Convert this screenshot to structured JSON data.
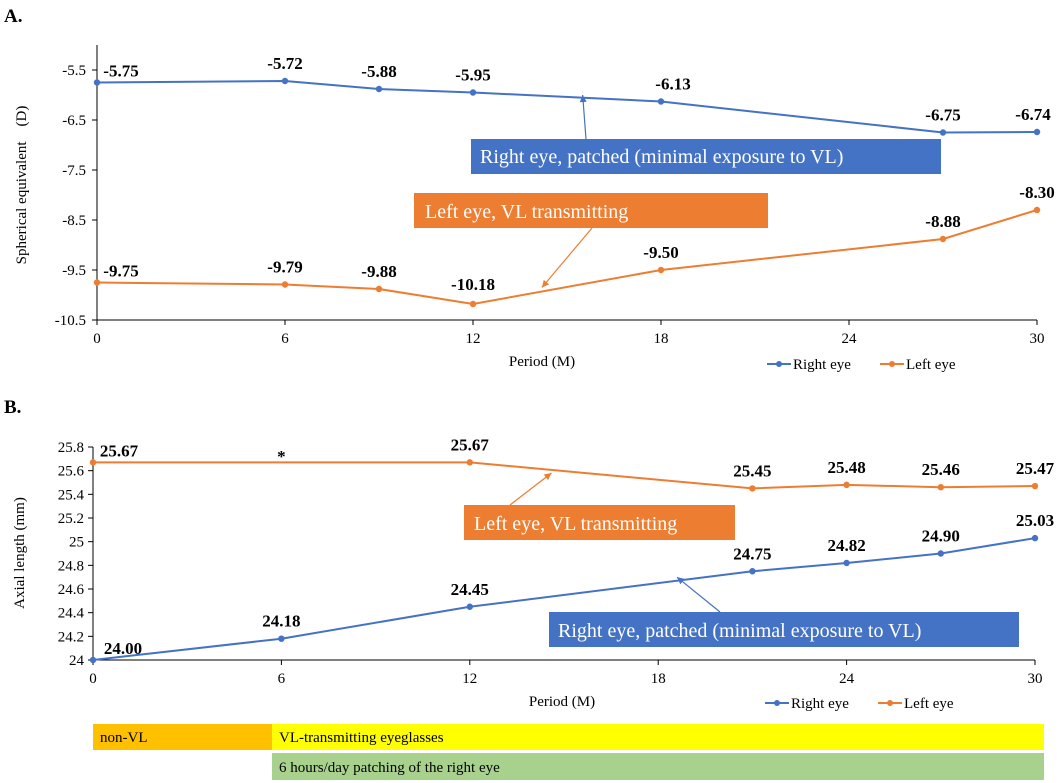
{
  "colors": {
    "right_eye": "#4472C4",
    "left_eye": "#ED7D31",
    "callout_blue": "#4472C4",
    "callout_orange": "#ED7D31",
    "bar_nonvl": "#FFC000",
    "bar_eyeglasses": "#FFFF00",
    "bar_patching": "#A9D18E"
  },
  "chart_data": [
    {
      "panel_label": "A.",
      "type": "line",
      "xlabel": "Period (M)",
      "ylabel": "Spherical equivalent    (D)",
      "xlim": [
        0,
        30
      ],
      "ylim": [
        -10.5,
        -5.0
      ],
      "xticks": [
        0,
        6,
        12,
        18,
        24,
        30
      ],
      "yticks": [
        -5.5,
        -6.5,
        -7.5,
        -8.5,
        -9.5,
        -10.5
      ],
      "ytick_labels": [
        "-5.5",
        "-6.5",
        "-7.5",
        "-8.5",
        "-9.5",
        "-10.5"
      ],
      "grid": false,
      "legend": "bottom-right",
      "series": [
        {
          "name": "Right eye",
          "x": [
            0,
            6,
            9,
            12,
            18,
            27,
            30
          ],
          "values": [
            -5.75,
            -5.72,
            -5.88,
            -5.95,
            -6.13,
            -6.75,
            -6.74
          ],
          "labels": [
            "-5.75",
            "-5.72",
            "-5.88",
            "-5.95",
            "-6.13",
            "-6.75",
            "-6.74"
          ]
        },
        {
          "name": "Left eye",
          "x": [
            0,
            6,
            9,
            12,
            18,
            27,
            30
          ],
          "values": [
            -9.75,
            -9.79,
            -9.88,
            -10.18,
            -9.5,
            -8.88,
            -8.3
          ],
          "labels": [
            "-9.75",
            "-9.79",
            "-9.88",
            "-10.18",
            "-9.50",
            "-8.88",
            "-8.30"
          ]
        }
      ],
      "annotations": [
        {
          "text": "Right eye, patched (minimal exposure to VL)",
          "series": "Right eye",
          "arrow_to": [
            15.5,
            -6.0
          ]
        },
        {
          "text": "Left eye, VL transmitting",
          "series": "Left eye",
          "arrow_to": [
            14.2,
            -9.85
          ]
        }
      ]
    },
    {
      "panel_label": "B.",
      "type": "line",
      "xlabel": "Period (M)",
      "ylabel": "Axial length (mm)",
      "xlim": [
        0,
        30
      ],
      "ylim": [
        24,
        25.8
      ],
      "xticks": [
        0,
        6,
        12,
        18,
        24,
        30
      ],
      "yticks": [
        24,
        24.2,
        24.4,
        24.6,
        24.8,
        25,
        25.2,
        25.4,
        25.6,
        25.8
      ],
      "ytick_labels": [
        "24",
        "24.2",
        "24.4",
        "24.6",
        "24.8",
        "25",
        "25.2",
        "25.4",
        "25.6",
        "25.8"
      ],
      "grid": false,
      "legend": "bottom-right",
      "series": [
        {
          "name": "Right eye",
          "x": [
            0,
            6,
            12,
            21,
            24,
            27,
            30
          ],
          "values": [
            24.0,
            24.18,
            24.45,
            24.75,
            24.82,
            24.9,
            25.03
          ],
          "labels": [
            "24.00",
            "24.18",
            "24.45",
            "24.75",
            "24.82",
            "24.90",
            "25.03"
          ]
        },
        {
          "name": "Left eye",
          "x": [
            0,
            12,
            21,
            24,
            27,
            30
          ],
          "values": [
            25.67,
            25.67,
            25.45,
            25.48,
            25.46,
            25.47
          ],
          "labels": [
            "25.67",
            "25.67",
            "25.45",
            "25.48",
            "25.46",
            "25.47"
          ]
        }
      ],
      "asterisk": {
        "x": 6,
        "text": "*"
      },
      "annotations": [
        {
          "text": "Left eye, VL transmitting",
          "series": "Left eye",
          "arrow_to": [
            14.6,
            25.58
          ]
        },
        {
          "text": "Right eye, patched (minimal exposure to VL)",
          "series": "Right eye",
          "arrow_to": [
            18.6,
            24.7
          ]
        }
      ]
    }
  ],
  "timeline": {
    "nonvl": "non-VL",
    "eyeglasses": "VL-transmitting eyeglasses",
    "patching": "6 hours/day patching of the right eye"
  }
}
